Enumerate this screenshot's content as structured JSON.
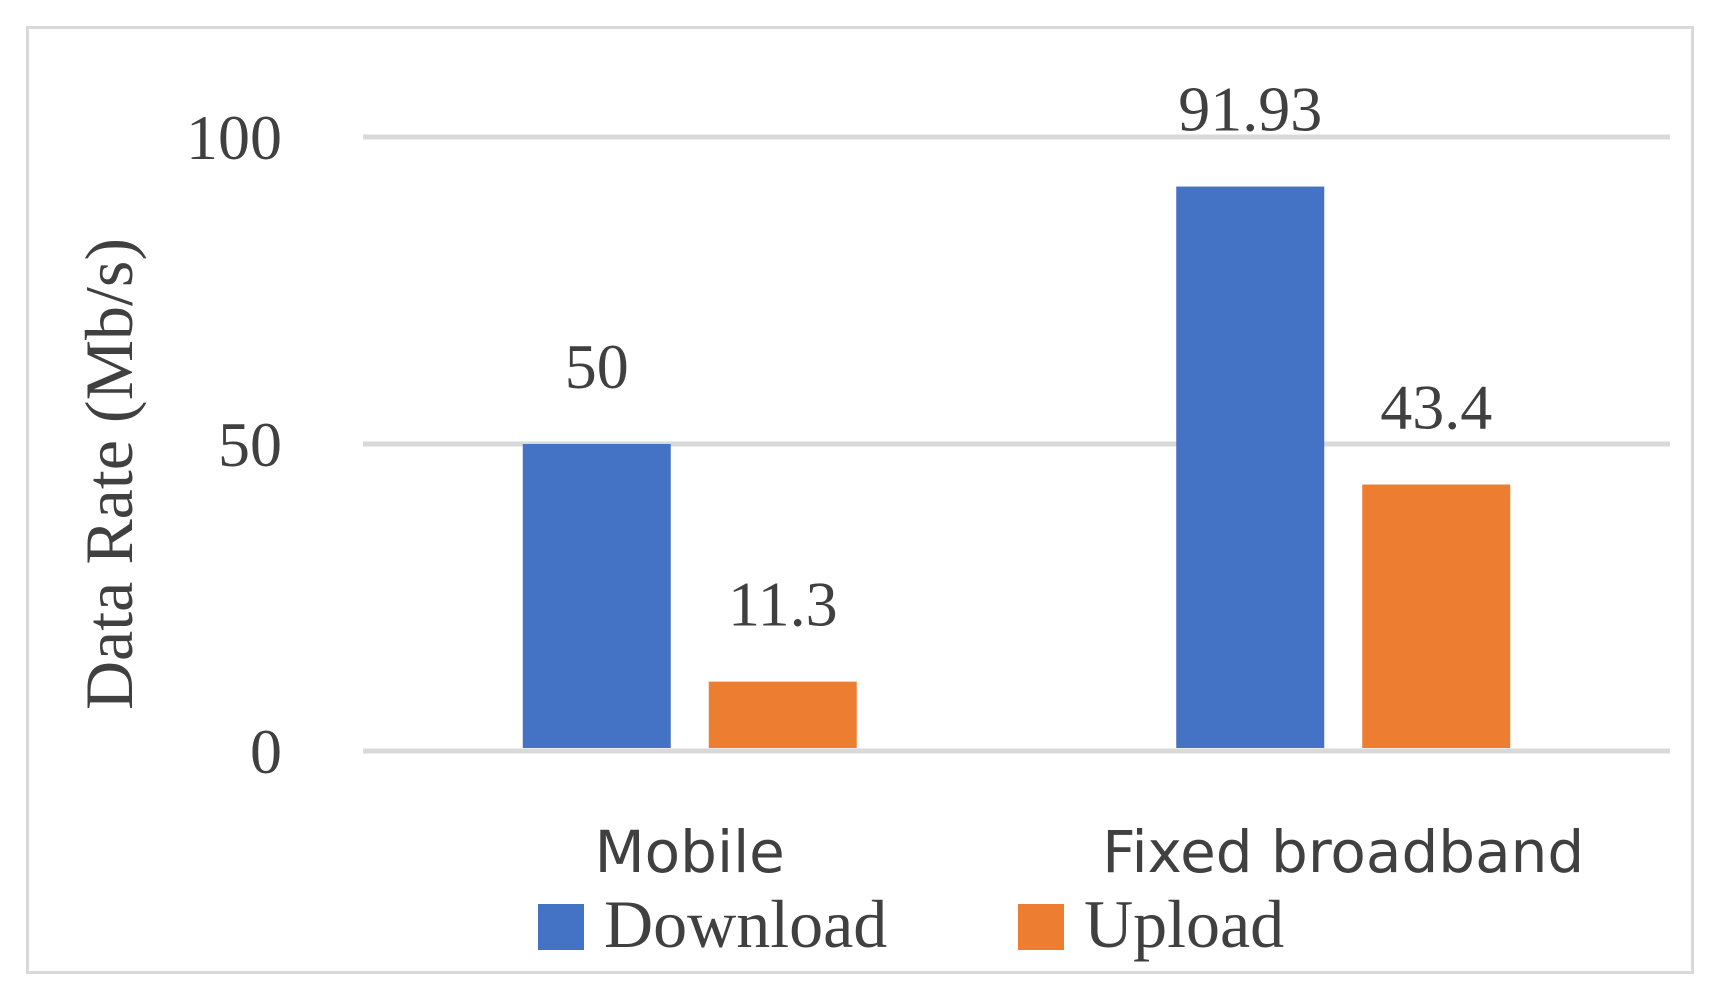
{
  "chart_data": {
    "type": "bar",
    "title": "",
    "xlabel": "",
    "ylabel": "Data Rate (Mb/s)",
    "categories": [
      "Mobile",
      "Fixed broadband"
    ],
    "series": [
      {
        "name": "Download",
        "values": [
          50,
          91.93
        ],
        "labels": [
          "50",
          "91.93"
        ],
        "color": "#4472c4"
      },
      {
        "name": "Upload",
        "values": [
          11.3,
          43.4
        ],
        "labels": [
          "11.3",
          "43.4"
        ],
        "color": "#ed7d31"
      }
    ],
    "ylim": [
      0,
      100
    ],
    "yticks": [
      {
        "value": 0,
        "label": "0"
      },
      {
        "value": 50,
        "label": "50"
      },
      {
        "value": 100,
        "label": "100"
      }
    ],
    "grid": true,
    "legend_position": "bottom",
    "gridline_color": "#d9d9d9",
    "text_color": "#404040"
  }
}
